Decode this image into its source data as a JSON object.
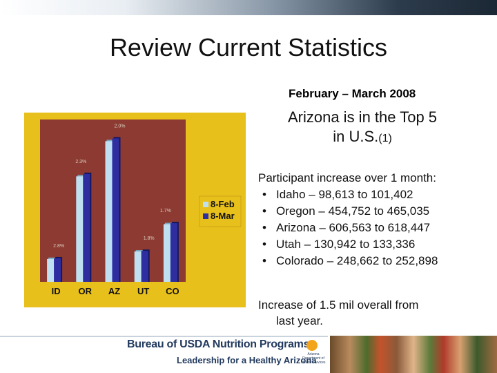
{
  "slide": {
    "title": "Review Current Statistics",
    "subtitle": "February – March 2008",
    "headline_main": "Arizona is in the Top 5 in U.S.",
    "headline_note": "(1)"
  },
  "chart_data": {
    "type": "bar",
    "categories": [
      "ID",
      "OR",
      "AZ",
      "UT",
      "CO"
    ],
    "series": [
      {
        "name": "8-Feb",
        "values": [
          98613,
          454752,
          606563,
          130942,
          248662
        ]
      },
      {
        "name": "8-Mar",
        "values": [
          101402,
          465035,
          618447,
          133336,
          252898
        ]
      }
    ],
    "data_labels": [
      "2.8%",
      "2.3%",
      "2.0%",
      "1.8%",
      "1.7%"
    ],
    "legend_position": "right",
    "ylim": [
      0,
      700000
    ],
    "colors": {
      "8-Feb": "#bfe0f0",
      "8-Mar": "#2e2ea0",
      "plot_bg": "#8c3a32",
      "panel_bg": "#e8c01c",
      "label_color": "#d9d0c0"
    }
  },
  "stats": {
    "heading": "Participant increase over 1 month:",
    "bullet_symbol": "•",
    "items": [
      "Idaho – 98,613 to 101,402",
      "Oregon – 454,752 to 465,035",
      "Arizona – 606,563 to 618,447",
      "Utah – 130,942 to 133,336",
      "Colorado – 248,662 to 252,898"
    ]
  },
  "summary": {
    "line1": "Increase of 1.5 mil overall from",
    "line2": "last year."
  },
  "footer": {
    "org": "Bureau of USDA Nutrition Programs",
    "tagline": "Leadership for a Healthy Arizona",
    "dept_logo_text": "Arizona Department of Health Services"
  }
}
